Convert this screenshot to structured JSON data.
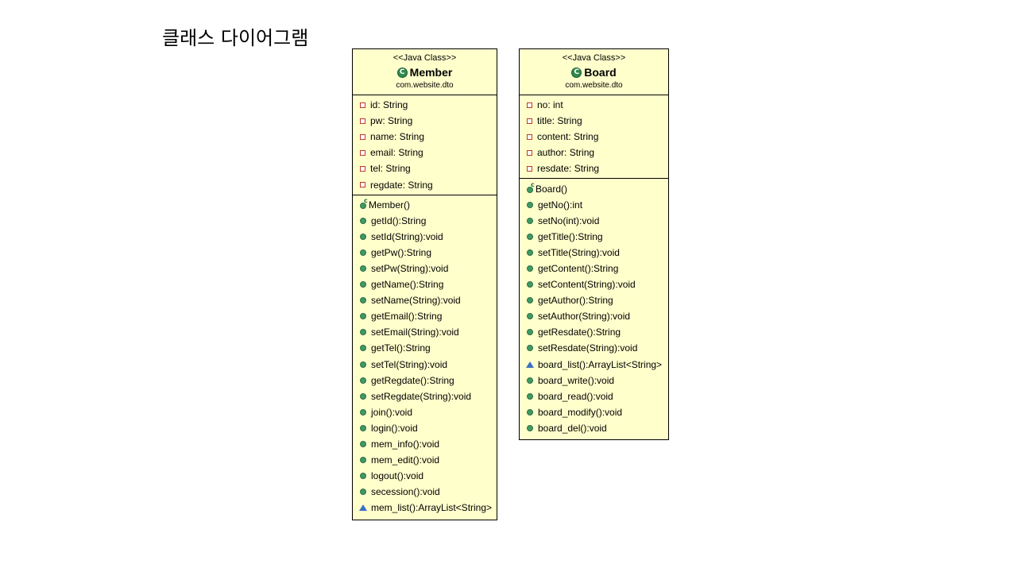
{
  "slide_title": "클래스 다이어그램",
  "classes": [
    {
      "stereotype": "<<Java Class>>",
      "name": "Member",
      "icon_letter": "C",
      "package": "com.website.dto",
      "fields": [
        "id: String",
        "pw: String",
        "name: String",
        "email: String",
        "tel: String",
        "regdate: String"
      ],
      "constructor": "Member()",
      "methods": [
        {
          "text": "getId():String",
          "visibility": "public"
        },
        {
          "text": "setId(String):void",
          "visibility": "public"
        },
        {
          "text": "getPw():String",
          "visibility": "public"
        },
        {
          "text": "setPw(String):void",
          "visibility": "public"
        },
        {
          "text": "getName():String",
          "visibility": "public"
        },
        {
          "text": "setName(String):void",
          "visibility": "public"
        },
        {
          "text": "getEmail():String",
          "visibility": "public"
        },
        {
          "text": "setEmail(String):void",
          "visibility": "public"
        },
        {
          "text": "getTel():String",
          "visibility": "public"
        },
        {
          "text": "setTel(String):void",
          "visibility": "public"
        },
        {
          "text": "getRegdate():String",
          "visibility": "public"
        },
        {
          "text": "setRegdate(String):void",
          "visibility": "public"
        },
        {
          "text": "join():void",
          "visibility": "public"
        },
        {
          "text": "login():void",
          "visibility": "public"
        },
        {
          "text": "mem_info():void",
          "visibility": "public"
        },
        {
          "text": "mem_edit():void",
          "visibility": "public"
        },
        {
          "text": "logout():void",
          "visibility": "public"
        },
        {
          "text": "secession():void",
          "visibility": "public"
        },
        {
          "text": "mem_list():ArrayList<String>",
          "visibility": "protected"
        }
      ]
    },
    {
      "stereotype": "<<Java Class>>",
      "name": "Board",
      "icon_letter": "C",
      "package": "com.website.dto",
      "fields": [
        "no: int",
        "title: String",
        "content: String",
        "author: String",
        "resdate: String"
      ],
      "constructor": "Board()",
      "methods": [
        {
          "text": "getNo():int",
          "visibility": "public"
        },
        {
          "text": "setNo(int):void",
          "visibility": "public"
        },
        {
          "text": "getTitle():String",
          "visibility": "public"
        },
        {
          "text": "setTitle(String):void",
          "visibility": "public"
        },
        {
          "text": "getContent():String",
          "visibility": "public"
        },
        {
          "text": "setContent(String):void",
          "visibility": "public"
        },
        {
          "text": "getAuthor():String",
          "visibility": "public"
        },
        {
          "text": "setAuthor(String):void",
          "visibility": "public"
        },
        {
          "text": "getResdate():String",
          "visibility": "public"
        },
        {
          "text": "setResdate(String):void",
          "visibility": "public"
        },
        {
          "text": "board_list():ArrayList<String>",
          "visibility": "protected"
        },
        {
          "text": "board_write():void",
          "visibility": "public"
        },
        {
          "text": "board_read():void",
          "visibility": "public"
        },
        {
          "text": "board_modify():void",
          "visibility": "public"
        },
        {
          "text": "board_del():void",
          "visibility": "public"
        }
      ]
    }
  ]
}
